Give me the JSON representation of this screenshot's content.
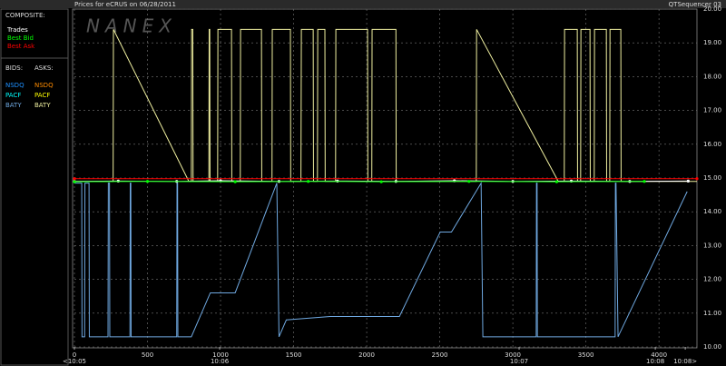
{
  "chart_data": {
    "type": "line",
    "title": "Prices for  eCRUS  on  06/28/2011",
    "source": "QTSequencer 03",
    "watermark": "NANEX",
    "xlim": [
      0,
      4260
    ],
    "ylim": [
      10,
      20
    ],
    "xticks": [
      0,
      500,
      1000,
      1500,
      2000,
      2500,
      3000,
      3500,
      4000
    ],
    "yticks": [
      {
        "value": 10,
        "label": "10.00"
      },
      {
        "value": 11,
        "label": "11.00"
      },
      {
        "value": 12,
        "label": "12.00"
      },
      {
        "value": 13,
        "label": "13.00"
      },
      {
        "value": 14,
        "label": "14.00"
      },
      {
        "value": 15,
        "label": "15.00"
      },
      {
        "value": 16,
        "label": "16.00"
      },
      {
        "value": 17,
        "label": "17.00"
      },
      {
        "value": 18,
        "label": "18.00"
      },
      {
        "value": 19,
        "label": "19.00"
      },
      {
        "value": 20,
        "label": "20.00"
      }
    ],
    "time_ticks": [
      {
        "value": 0,
        "label": "<10:05"
      },
      {
        "value": 994,
        "label": "10:06"
      },
      {
        "value": 3043,
        "label": "10:07"
      },
      {
        "value": 3975,
        "label": "10:08"
      },
      {
        "value": 4180,
        "label": "10:08>"
      }
    ],
    "grid": true,
    "composite": {
      "title": "COMPOSITE:",
      "series": [
        {
          "name": "Trades",
          "color": "#ffffff",
          "x": [
            0,
            300,
            700,
            1000,
            1400,
            1800,
            2200,
            2600,
            3000,
            3400,
            3800,
            4200
          ],
          "values": [
            14.9,
            14.91,
            14.9,
            14.92,
            14.9,
            14.91,
            14.9,
            14.92,
            14.9,
            14.91,
            14.9,
            14.91
          ]
        },
        {
          "name": "Best Bid",
          "color": "#00ff00",
          "x": [
            0,
            500,
            1100,
            1600,
            2100,
            2700,
            3300,
            3900
          ],
          "values": [
            14.89,
            14.9,
            14.89,
            14.9,
            14.89,
            14.9,
            14.89,
            14.9
          ]
        },
        {
          "name": "Best Ask",
          "color": "#ff0000",
          "x": [
            0,
            4260
          ],
          "values": [
            14.98,
            14.98
          ]
        }
      ]
    },
    "bids": {
      "title": "BIDS:",
      "series": [
        {
          "name": "NSDQ",
          "color": "#1e90ff"
        },
        {
          "name": "PACF",
          "color": "#00ffff"
        },
        {
          "name": "BATY",
          "color": "#6fa8e0",
          "x": [
            0,
            50,
            52,
            70,
            72,
            100,
            102,
            230,
            232,
            240,
            242,
            380,
            382,
            386,
            388,
            700,
            702,
            706,
            708,
            800,
            930,
            1100,
            1385,
            1400,
            1450,
            1750,
            2224,
            2503,
            2580,
            2783,
            2795,
            3160,
            3162,
            3166,
            3168,
            3700,
            3702,
            3706,
            3720,
            4193
          ],
          "values": [
            14.85,
            14.85,
            10.3,
            10.3,
            14.85,
            14.85,
            10.3,
            10.3,
            14.85,
            14.85,
            10.3,
            10.3,
            14.85,
            14.85,
            10.3,
            10.3,
            14.85,
            14.85,
            10.3,
            10.3,
            11.6,
            11.6,
            14.85,
            10.3,
            10.8,
            10.9,
            10.9,
            13.4,
            13.4,
            14.85,
            10.3,
            10.3,
            14.85,
            14.85,
            10.3,
            10.3,
            14.85,
            14.85,
            10.3,
            14.6
          ]
        }
      ]
    },
    "asks": {
      "title": "ASKS:",
      "series": [
        {
          "name": "NSDQ",
          "color": "#ff8c00"
        },
        {
          "name": "PACF",
          "color": "#ffff00"
        },
        {
          "name": "BATY",
          "color": "#f0f0a0",
          "x": [
            0,
            265,
            267,
            783,
            800,
            802,
            810,
            812,
            920,
            922,
            926,
            928,
            980,
            982,
            1075,
            1077,
            1135,
            1137,
            1280,
            1282,
            1352,
            1354,
            1478,
            1480,
            1550,
            1553,
            1634,
            1636,
            1663,
            1665,
            1714,
            1716,
            1787,
            1789,
            2006,
            2008,
            2035,
            2037,
            2200,
            2202,
            2750,
            2752,
            3311,
            3352,
            3354,
            3441,
            3443,
            3464,
            3466,
            3528,
            3530,
            3557,
            3559,
            3640,
            3642,
            3663,
            3665,
            3739,
            3741,
            4260
          ],
          "values": [
            14.9,
            14.9,
            19.4,
            14.9,
            14.9,
            19.4,
            19.4,
            14.9,
            14.9,
            19.4,
            19.4,
            14.9,
            14.9,
            19.4,
            19.4,
            14.9,
            14.9,
            19.4,
            19.4,
            14.9,
            14.9,
            19.4,
            19.4,
            14.9,
            14.9,
            19.4,
            19.4,
            14.9,
            14.9,
            19.4,
            19.4,
            14.9,
            14.9,
            19.4,
            19.4,
            14.9,
            14.9,
            19.4,
            19.4,
            14.9,
            14.9,
            19.4,
            14.9,
            14.9,
            19.4,
            19.4,
            14.9,
            14.9,
            19.4,
            19.4,
            14.9,
            14.9,
            19.4,
            19.4,
            14.9,
            14.9,
            19.4,
            19.4,
            14.9,
            14.9
          ]
        }
      ]
    }
  }
}
